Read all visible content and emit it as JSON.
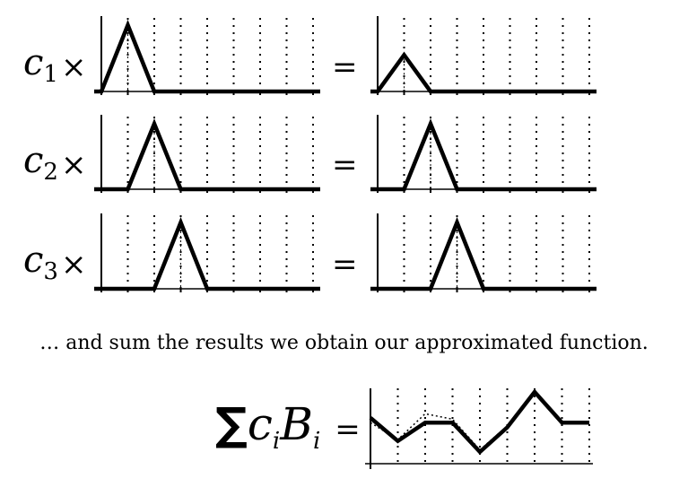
{
  "rows": [
    {
      "label": "c",
      "sub": "1",
      "times": "×",
      "equals": "=",
      "peak": 1,
      "left_height": 1.0,
      "right_height": 0.55
    },
    {
      "label": "c",
      "sub": "2",
      "times": "×",
      "equals": "=",
      "peak": 2,
      "left_height": 1.0,
      "right_height": 1.0
    },
    {
      "label": "c",
      "sub": "3",
      "times": "×",
      "equals": "=",
      "peak": 3,
      "left_height": 1.0,
      "right_height": 1.0
    }
  ],
  "caption": "… and sum the results we obtain our approximated function.",
  "sum": {
    "symbol": "∑",
    "c": "c",
    "i1": "i",
    "b": "B",
    "i2": "i",
    "equals": "="
  },
  "sum_curve": {
    "values": [
      0.62,
      0.28,
      0.55,
      0.55,
      0.12,
      0.48,
      1.0,
      0.55,
      0.55
    ],
    "dotted": [
      0.55,
      0.3,
      0.68,
      0.6,
      0.15,
      0.5,
      1.0,
      0.55,
      0.55
    ]
  }
}
